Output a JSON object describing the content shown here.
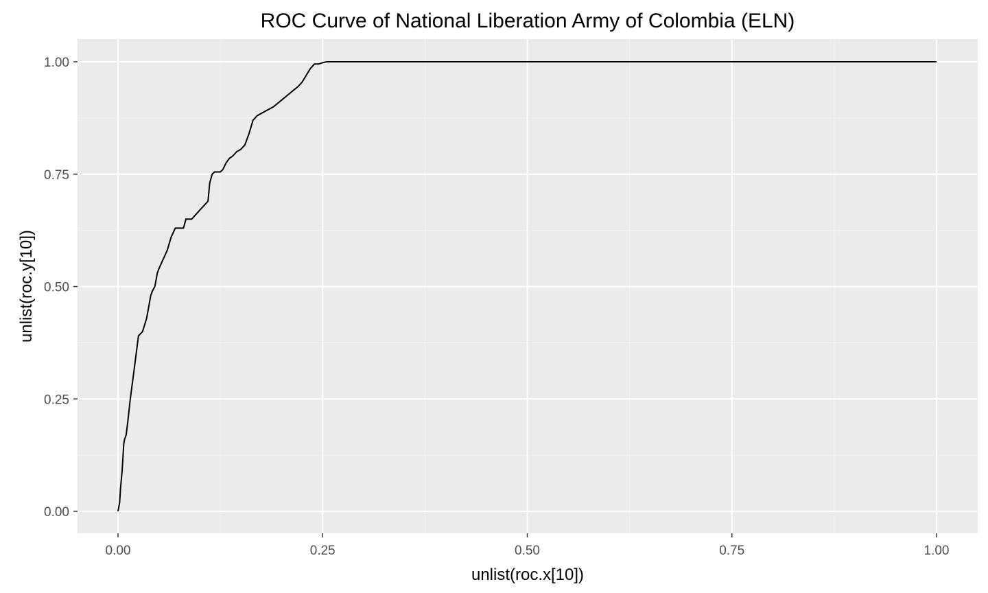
{
  "chart_data": {
    "type": "line",
    "title": "ROC Curve of  National Liberation Army of Colombia (ELN)",
    "xlabel": "unlist(roc.x[10])",
    "ylabel": "unlist(roc.y[10])",
    "xlim": [
      0,
      1
    ],
    "ylim": [
      0,
      1
    ],
    "x_ticks": [
      0,
      0.25,
      0.5,
      0.75,
      1
    ],
    "y_ticks": [
      0,
      0.25,
      0.5,
      0.75,
      1
    ],
    "x_tick_labels": [
      "0.00",
      "0.25",
      "0.50",
      "0.75",
      "1.00"
    ],
    "y_tick_labels": [
      "0.00",
      "0.25",
      "0.50",
      "0.75",
      "1.00"
    ],
    "grid": true,
    "legend": "none",
    "colors": {
      "panel_background": "#ebebeb",
      "grid_major": "#ffffff",
      "grid_minor": "#f5f5f5",
      "line": "#000000"
    },
    "series": [
      {
        "x": [
          0.0,
          0.002,
          0.003,
          0.005,
          0.007,
          0.008,
          0.01,
          0.012,
          0.015,
          0.02,
          0.025,
          0.03,
          0.035,
          0.04,
          0.042,
          0.045,
          0.048,
          0.05,
          0.055,
          0.06,
          0.065,
          0.07,
          0.075,
          0.08,
          0.083,
          0.09,
          0.095,
          0.1,
          0.105,
          0.11,
          0.112,
          0.115,
          0.118,
          0.125,
          0.128,
          0.132,
          0.136,
          0.14,
          0.145,
          0.15,
          0.155,
          0.16,
          0.165,
          0.17,
          0.175,
          0.18,
          0.19,
          0.2,
          0.21,
          0.22,
          0.225,
          0.23,
          0.235,
          0.24,
          0.245,
          0.25,
          0.255,
          0.26,
          0.3,
          0.4,
          0.5,
          0.6,
          0.7,
          0.8,
          0.9,
          1.0
        ],
        "y": [
          0.0,
          0.02,
          0.05,
          0.09,
          0.15,
          0.16,
          0.17,
          0.2,
          0.25,
          0.32,
          0.39,
          0.4,
          0.43,
          0.48,
          0.49,
          0.5,
          0.53,
          0.54,
          0.56,
          0.58,
          0.61,
          0.63,
          0.63,
          0.63,
          0.65,
          0.65,
          0.66,
          0.67,
          0.68,
          0.69,
          0.73,
          0.75,
          0.755,
          0.755,
          0.76,
          0.775,
          0.785,
          0.79,
          0.8,
          0.805,
          0.815,
          0.84,
          0.87,
          0.88,
          0.885,
          0.89,
          0.9,
          0.915,
          0.93,
          0.945,
          0.955,
          0.97,
          0.985,
          0.995,
          0.995,
          0.998,
          1.0,
          1.0,
          1.0,
          1.0,
          1.0,
          1.0,
          1.0,
          1.0,
          1.0,
          1.0
        ]
      }
    ]
  }
}
